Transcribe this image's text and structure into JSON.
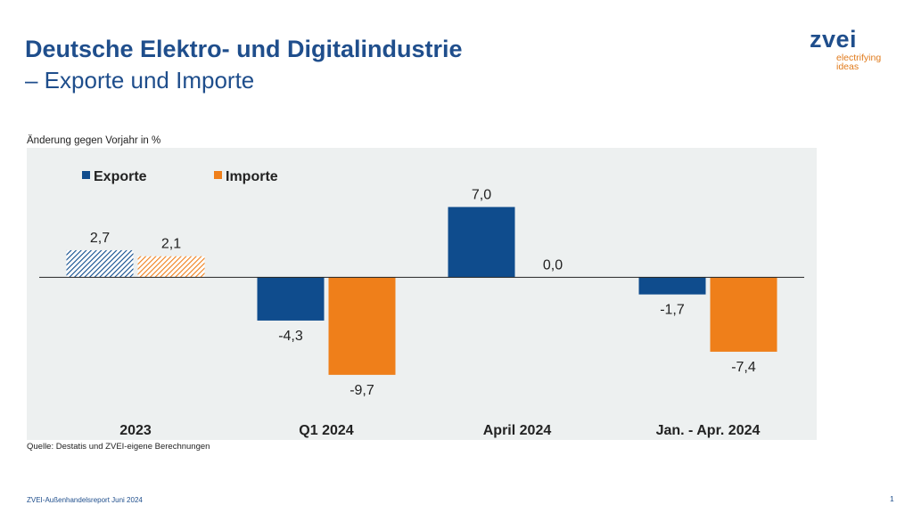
{
  "header": {
    "title": "Deutsche Elektro- und Digitalindustrie",
    "subtitle": "– Exporte und Importe"
  },
  "logo": {
    "word": "zvei",
    "tagline_1": "electrifying",
    "tagline_2": "ideas"
  },
  "chart_data": {
    "type": "bar",
    "title": "Deutsche Elektro- und Digitalindustrie – Exporte und Importe",
    "ylabel": "Änderung gegen Vorjahr in %",
    "xlabel": "",
    "categories": [
      "2023",
      "Q1 2024",
      "April 2024",
      "Jan. - Apr. 2024"
    ],
    "series": [
      {
        "name": "Exporte",
        "values": [
          2.7,
          -4.3,
          7.0,
          -1.7
        ],
        "labels": [
          "2,7",
          "-4,3",
          "7,0",
          "-1,7"
        ],
        "color": "#0f4c8d"
      },
      {
        "name": "Importe",
        "values": [
          2.1,
          -9.7,
          0.0,
          -7.4
        ],
        "labels": [
          "2,1",
          "-9,7",
          "0,0",
          "-7,4"
        ],
        "color": "#ef7f1a"
      }
    ],
    "hatched_categories": [
      "2023"
    ],
    "ylim": [
      -13.7,
      12.0
    ],
    "grid": false,
    "legend_position": "top-left",
    "background": "#edf0f0"
  },
  "source": "Quelle: Destatis und ZVEI-eigene Berechnungen",
  "footer": {
    "report": "ZVEI-Außenhandelsreport Juni 2024",
    "page": "1"
  }
}
